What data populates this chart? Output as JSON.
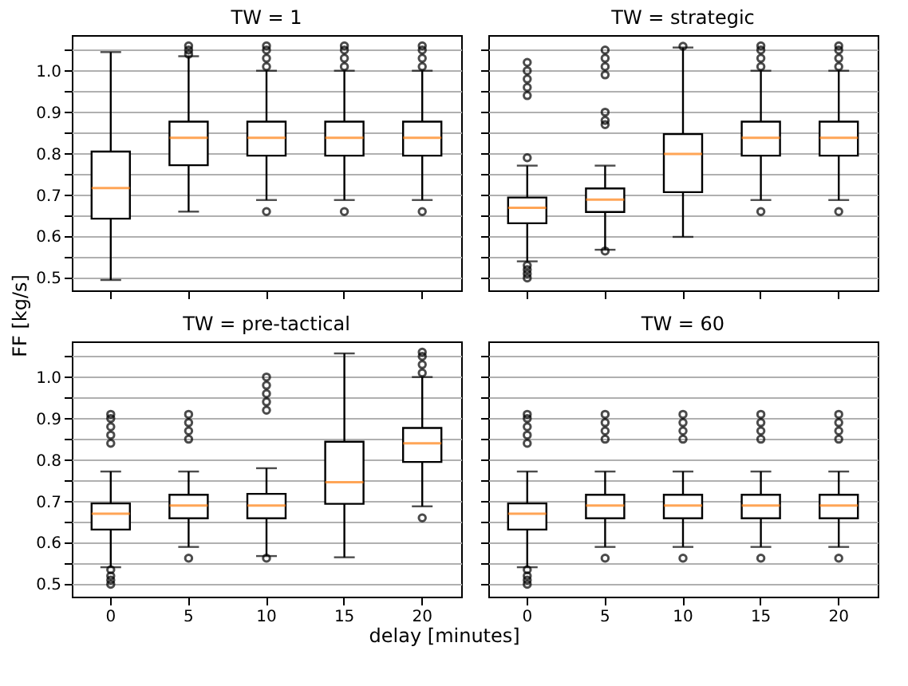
{
  "chart_data": [
    {
      "type": "box",
      "title": "TW = 1",
      "ylabel": "FF [kg/s]",
      "categories": [
        "0",
        "5",
        "10",
        "15",
        "20"
      ],
      "ylim": [
        0.47,
        1.086
      ],
      "yticks": [
        0.5,
        {
          "value": 0.55,
          "label": null
        },
        0.6,
        {
          "value": 0.65,
          "label": null
        },
        0.7,
        {
          "value": 0.75,
          "label": null
        },
        0.8,
        {
          "value": 0.85,
          "label": null
        },
        0.9,
        {
          "value": 0.95,
          "label": null
        },
        {
          "value": 1,
          "label": "1.0"
        },
        {
          "value": 1.05,
          "label": null
        }
      ],
      "grid": "y",
      "tick_labels": "y",
      "boxes": [
        {
          "low": 0.495,
          "q1": 0.643,
          "median": 0.717,
          "q3": 0.805,
          "high": 1.045
        },
        {
          "low": 0.66,
          "q1": 0.772,
          "median": 0.838,
          "q3": 0.877,
          "high": 1.035,
          "outliers": [
            1.04,
            1.05,
            1.06
          ]
        },
        {
          "low": 0.688,
          "q1": 0.795,
          "median": 0.838,
          "q3": 0.877,
          "high": 1.0,
          "outliers": [
            0.66,
            1.01,
            1.03,
            1.05,
            1.06
          ]
        },
        {
          "low": 0.688,
          "q1": 0.795,
          "median": 0.838,
          "q3": 0.877,
          "high": 1.0,
          "outliers": [
            0.66,
            1.01,
            1.03,
            1.05,
            1.06
          ]
        },
        {
          "low": 0.688,
          "q1": 0.795,
          "median": 0.838,
          "q3": 0.877,
          "high": 1.0,
          "outliers": [
            0.66,
            1.01,
            1.03,
            1.05,
            1.06
          ]
        }
      ]
    },
    {
      "type": "box",
      "title": "TW = strategic",
      "categories": [
        "0",
        "5",
        "10",
        "15",
        "20"
      ],
      "ylim": [
        0.47,
        1.086
      ],
      "yticks": [
        0.5,
        0.55,
        0.6,
        0.65,
        0.7,
        0.75,
        0.8,
        0.85,
        0.9,
        0.95,
        1,
        1.05
      ],
      "grid": "y",
      "tick_labels": false,
      "boxes": [
        {
          "low": 0.54,
          "q1": 0.632,
          "median": 0.669,
          "q3": 0.694,
          "high": 0.771,
          "outliers": [
            0.5,
            0.51,
            0.52,
            0.53,
            0.79,
            0.94,
            0.96,
            0.98,
            1.0,
            1.02
          ]
        },
        {
          "low": 0.568,
          "q1": 0.659,
          "median": 0.689,
          "q3": 0.716,
          "high": 0.771,
          "outliers": [
            0.565,
            0.87,
            0.88,
            0.9,
            0.99,
            1.01,
            1.03,
            1.05
          ]
        },
        {
          "low": 0.599,
          "q1": 0.707,
          "median": 0.799,
          "q3": 0.847,
          "high": 1.056,
          "outliers": [
            1.059
          ]
        },
        {
          "low": 0.688,
          "q1": 0.795,
          "median": 0.838,
          "q3": 0.877,
          "high": 1.0,
          "outliers": [
            0.66,
            1.01,
            1.03,
            1.05,
            1.06
          ]
        },
        {
          "low": 0.688,
          "q1": 0.795,
          "median": 0.838,
          "q3": 0.877,
          "high": 1.0,
          "outliers": [
            0.66,
            1.01,
            1.03,
            1.05,
            1.06
          ]
        }
      ]
    },
    {
      "type": "box",
      "title": "TW = pre-tactical",
      "xlabel": "delay [minutes]",
      "categories": [
        "0",
        "5",
        "10",
        "15",
        "20"
      ],
      "ylim": [
        0.47,
        1.086
      ],
      "yticks": [
        0.5,
        {
          "value": 0.55,
          "label": null
        },
        0.6,
        {
          "value": 0.65,
          "label": null
        },
        0.7,
        {
          "value": 0.75,
          "label": null
        },
        0.8,
        {
          "value": 0.85,
          "label": null
        },
        0.9,
        {
          "value": 0.95,
          "label": null
        },
        {
          "value": 1,
          "label": "1.0"
        },
        {
          "value": 1.05,
          "label": null
        }
      ],
      "grid": "y",
      "boxes": [
        {
          "low": 0.541,
          "q1": 0.632,
          "median": 0.67,
          "q3": 0.695,
          "high": 0.772,
          "outliers": [
            0.5,
            0.51,
            0.52,
            0.535,
            0.84,
            0.86,
            0.88,
            0.9,
            0.91
          ]
        },
        {
          "low": 0.59,
          "q1": 0.659,
          "median": 0.69,
          "q3": 0.716,
          "high": 0.772,
          "outliers": [
            0.563,
            0.85,
            0.87,
            0.89,
            0.91
          ]
        },
        {
          "low": 0.568,
          "q1": 0.659,
          "median": 0.69,
          "q3": 0.718,
          "high": 0.78,
          "outliers": [
            0.563,
            0.92,
            0.94,
            0.96,
            0.98,
            1.0
          ]
        },
        {
          "low": 0.565,
          "q1": 0.694,
          "median": 0.746,
          "q3": 0.844,
          "high": 1.057
        },
        {
          "low": 0.688,
          "q1": 0.795,
          "median": 0.84,
          "q3": 0.877,
          "high": 1.0,
          "outliers": [
            0.66,
            1.01,
            1.03,
            1.05,
            1.06
          ]
        }
      ]
    },
    {
      "type": "box",
      "title": "TW = 60",
      "categories": [
        "0",
        "5",
        "10",
        "15",
        "20"
      ],
      "ylim": [
        0.47,
        1.086
      ],
      "yticks": [
        0.5,
        0.55,
        0.6,
        0.65,
        0.7,
        0.75,
        0.8,
        0.85,
        0.9,
        0.95,
        1,
        1.05
      ],
      "grid": "y",
      "tick_labels": "x",
      "boxes": [
        {
          "low": 0.541,
          "q1": 0.632,
          "median": 0.67,
          "q3": 0.695,
          "high": 0.772,
          "outliers": [
            0.5,
            0.51,
            0.52,
            0.535,
            0.84,
            0.86,
            0.88,
            0.9,
            0.91
          ]
        },
        {
          "low": 0.59,
          "q1": 0.659,
          "median": 0.69,
          "q3": 0.716,
          "high": 0.772,
          "outliers": [
            0.563,
            0.85,
            0.87,
            0.89,
            0.91
          ]
        },
        {
          "low": 0.59,
          "q1": 0.659,
          "median": 0.69,
          "q3": 0.716,
          "high": 0.772,
          "outliers": [
            0.563,
            0.85,
            0.87,
            0.89,
            0.91
          ]
        },
        {
          "low": 0.59,
          "q1": 0.659,
          "median": 0.69,
          "q3": 0.716,
          "high": 0.772,
          "outliers": [
            0.563,
            0.85,
            0.87,
            0.89,
            0.91
          ]
        },
        {
          "low": 0.59,
          "q1": 0.659,
          "median": 0.69,
          "q3": 0.716,
          "high": 0.772,
          "outliers": [
            0.563,
            0.85,
            0.87,
            0.89,
            0.91
          ]
        }
      ]
    }
  ]
}
